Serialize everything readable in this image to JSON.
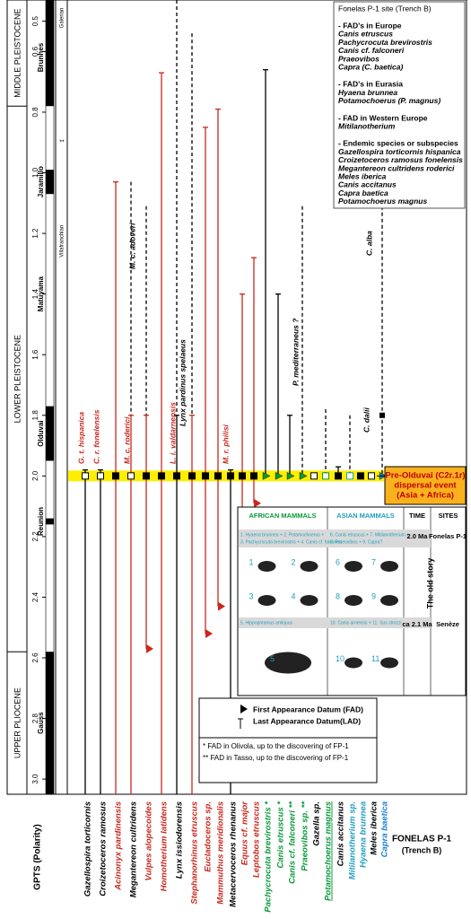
{
  "chart_data": {
    "type": "range",
    "ylim": [
      0.43,
      3.05
    ],
    "yticks": [
      0.5,
      0.6,
      0.8,
      {
        "value": 1.0,
        "label": "1.0"
      },
      1.2,
      1.4,
      1.6,
      1.8,
      {
        "value": 2.0,
        "label": "2.0"
      },
      2.2,
      2.4,
      2.6,
      2.8,
      {
        "value": 3.0,
        "label": "3.0"
      }
    ],
    "epochs": [
      {
        "name": "MIDDLE PLEISTOCENE",
        "from": 0.43,
        "to": 0.78
      },
      {
        "name": "LOWER PLEISTOCENE",
        "from": 0.78,
        "to": 2.58
      },
      {
        "name": "UPPER PLIOCENE",
        "from": 2.58,
        "to": 3.05
      }
    ],
    "chrons": [
      {
        "name": "Brunhes",
        "from": 0.43,
        "to": 0.78
      },
      {
        "name": "Jaramillo",
        "from": 0.99,
        "to": 1.07
      },
      {
        "name": "Matuyama",
        "from": 1.2,
        "to": 1.6,
        "reversed": true
      },
      {
        "name": "Olduvai",
        "from": 1.77,
        "to": 1.95
      },
      {
        "name": "Reunion",
        "from": 2.14,
        "to": 2.16
      },
      {
        "name": "Gauss",
        "from": 2.58,
        "to": 3.05
      }
    ],
    "stages": [
      {
        "name": "Galerian",
        "from": 0.43,
        "to": 0.9
      },
      {
        "name": "Villafranchian",
        "from": 0.9,
        "to": 1.6
      }
    ],
    "stage_boundary_mark": "**",
    "polarity_label": "GPTS (Polarity)",
    "band_age": 2.0,
    "taxa": [
      {
        "name": "Gazellospira torticornis",
        "color": "#000000",
        "marker": "white",
        "ranges": [
          {
            "top": 1.98,
            "bottom": null,
            "color": "#000000",
            "dashed": false
          }
        ]
      },
      {
        "name": "Croizetoceros ramosus",
        "color": "#000000",
        "marker": "white",
        "ranges": [
          {
            "top": 1.98,
            "bottom": null,
            "color": "#000000",
            "dashed": false
          }
        ]
      },
      {
        "name": "Acinonyx pardinensis",
        "color": "#c8281e",
        "marker": "black",
        "ranges": [
          {
            "top": 1.03,
            "bottom": null,
            "color": "#c8281e",
            "dashed": false
          }
        ]
      },
      {
        "name": "Megantereon cultridens",
        "color": "#000000",
        "marker": "white",
        "ranges": [
          {
            "top": 1.03,
            "bottom": 1.8,
            "color": "#000000",
            "dashed": true
          },
          {
            "top": 1.8,
            "bottom": null,
            "color": "#c8281e",
            "dashed": false
          }
        ]
      },
      {
        "name": "Vulpes alopecoides",
        "color": "#c8281e",
        "marker": "black",
        "ranges": [
          {
            "top": 1.11,
            "bottom": 1.8,
            "color": "#000000",
            "dashed": true
          },
          {
            "top": 1.8,
            "bottom": 2.57,
            "color": "#c8281e",
            "dashed": false,
            "fad_arrow": true
          }
        ]
      },
      {
        "name": "Homotherium latidens",
        "color": "#c8281e",
        "marker": "black",
        "ranges": [
          {
            "top": 0.67,
            "bottom": null,
            "color": "#c8281e",
            "dashed": false
          }
        ]
      },
      {
        "name": "Lynx issiodorensis",
        "color": "#000000",
        "marker": "black",
        "ranges": [
          {
            "top": 0.43,
            "bottom": 1.8,
            "color": "#000000",
            "dashed": true
          },
          {
            "top": 1.8,
            "bottom": null,
            "color": "#000000",
            "dashed": false
          }
        ]
      },
      {
        "name": "Stephanorhinus etruscus",
        "color": "#c8281e",
        "marker": "black",
        "ranges": [
          {
            "top": 0.54,
            "bottom": 1.8,
            "color": "#000000",
            "dashed": true
          },
          {
            "top": 1.8,
            "bottom": null,
            "color": "#c8281e",
            "dashed": false
          }
        ]
      },
      {
        "name": "Eucladoceros sp.",
        "color": "#c8281e",
        "marker": "black",
        "ranges": [
          {
            "top": 0.85,
            "bottom": 2.52,
            "color": "#c8281e",
            "dashed": false,
            "fad_arrow": true
          }
        ]
      },
      {
        "name": "Mammuthus meridionalis",
        "color": "#c8281e",
        "marker": "black",
        "ranges": [
          {
            "top": 0.79,
            "bottom": 2.43,
            "color": "#c8281e",
            "dashed": false,
            "fad_arrow": true
          }
        ]
      },
      {
        "name": "Metacervoceros rhenanus",
        "color": "#000000",
        "marker": "black",
        "ranges": [
          {
            "top": 1.98,
            "bottom": null,
            "color": "#000000",
            "dashed": false
          }
        ]
      },
      {
        "name": "Equus cf. major",
        "color": "#c8281e",
        "marker": "black",
        "ranges": [
          {
            "top": 1.4,
            "bottom": 2.43,
            "color": "#c8281e",
            "dashed": false,
            "fad_arrow": true
          }
        ]
      },
      {
        "name": "Leptobos etruscus",
        "color": "#c8281e",
        "marker": "black",
        "ranges": [
          {
            "top": 1.28,
            "bottom": 2.09,
            "color": "#c8281e",
            "dashed": false,
            "fad_arrow": true
          }
        ]
      },
      {
        "name": "Pachycrocuta brevirostris *",
        "color": "#0a9a3a",
        "marker": "triangle",
        "ranges": [
          {
            "top": 0.66,
            "bottom": 2.0,
            "color": "#000000",
            "dashed": false
          }
        ]
      },
      {
        "name": "Canis etruscus *",
        "color": "#0a9a3a",
        "marker": "triangle",
        "ranges": [
          {
            "top": 1.4,
            "bottom": 2.0,
            "color": "#000000",
            "dashed": false
          }
        ]
      },
      {
        "name": "Canis cf. falconeri **",
        "color": "#0a9a3a",
        "marker": "triangle",
        "ranges": [
          {
            "top": 1.8,
            "bottom": 2.0,
            "color": "#000000",
            "dashed": false
          }
        ]
      },
      {
        "name": "Praeovibos sp. **",
        "color": "#0a9a3a",
        "marker": "triangle",
        "ranges": [
          {
            "top": 1.11,
            "bottom": 2.0,
            "color": "#000000",
            "dashed": true
          }
        ]
      },
      {
        "name": "Gazella sp.",
        "color": "#000000",
        "marker": "white",
        "ranges": []
      },
      {
        "name": "Potamochoerus magnus",
        "color": "#0a9a3a",
        "marker": "white",
        "ranges": [
          {
            "top": 1.78,
            "bottom": 2.0,
            "color": "#000000",
            "dashed": true
          }
        ]
      },
      {
        "name": "Canis accitanus",
        "color": "#000000",
        "marker": "black",
        "ranges": [
          {
            "top": 1.97,
            "bottom": 2.0,
            "color": "#000000",
            "dashed": false
          }
        ]
      },
      {
        "name": "Mitilanotherium sp.",
        "color": "#1f9fc0",
        "marker": "white",
        "ranges": [
          {
            "top": 1.8,
            "bottom": 2.0,
            "color": "#000000",
            "dashed": true
          }
        ]
      },
      {
        "name": "Hyaena brunnea",
        "color": "#1f9fc0",
        "marker": "black",
        "ranges": []
      },
      {
        "name": "Meles iberica",
        "color": "#000000",
        "marker": "white",
        "ranges": []
      },
      {
        "name": "Capra baetica",
        "color": "#1a7fd1",
        "marker": "triangle",
        "ranges": [
          {
            "top": 1.11,
            "bottom": 2.0,
            "color": "#000000",
            "dashed": true
          }
        ]
      }
    ],
    "annotations": [
      {
        "text": "G. t. hispanica",
        "color": "#c8281e"
      },
      {
        "text": "C. r. fonelensis",
        "color": "#c8281e"
      },
      {
        "text": "M. c. roderici",
        "color": "#c8281e"
      },
      {
        "text": "M. c. adoveri",
        "color": "#000000"
      },
      {
        "text": "L. i. valdarnensis",
        "color": "#c8281e"
      },
      {
        "text": "Lynx pardinus spelaeus",
        "color": "#000000"
      },
      {
        "text": "M. r. philisi",
        "color": "#c8281e"
      },
      {
        "text": "P. mediterraneus ?",
        "color": "#000000"
      },
      {
        "text": "C. dalii",
        "color": "#000000"
      },
      {
        "text": "C. alba",
        "color": "#000000"
      }
    ],
    "event_box": [
      "Pre-Olduvai (C2r.1r)",
      "dispersal event",
      "(Asia + Africa)"
    ],
    "site_box": {
      "title": "Fonelas P-1 site (Trench B)",
      "groups": [
        {
          "heading": "- FAD's in Europe",
          "items": [
            "Canis etruscus",
            "Pachycrocuta brevirostris",
            "Canis cf. falconeri",
            "Praeovibos",
            "Capra (C. baetica)"
          ]
        },
        {
          "heading": "- FAD's in Eurasia",
          "items": [
            "Hyaena brunnea",
            "Potamochoerus (P. magnus)"
          ]
        },
        {
          "heading": "- FAD in Western Europe",
          "items": [
            "Mitilanotherium"
          ]
        },
        {
          "heading": "- Endemic species or subspecies",
          "items": [
            "Gazellospira torticornis hispanica",
            "Croizetoceros ramosus fonelensis",
            "Megantereon cultridens roderici",
            "Meles iberica",
            "Canis accitanus",
            "Capra baetica",
            "Potamochoerus magnus"
          ]
        }
      ]
    },
    "inset": {
      "headers": [
        "AFRICAN MAMMALS",
        "ASIAN MAMMALS",
        "TIME",
        "SITES"
      ],
      "rows": [
        {
          "african": [
            "1. Hyaena brunnea + 2. Potamochoerus +",
            "3. Pachycrocuta brevirostris + 4. Canis cf. falconeri"
          ],
          "asian": [
            "6. Canis etruscus + 7. Mitilanotherium +",
            "8. Praeovibos + 9. Capra?"
          ],
          "time": "2.0 Ma",
          "site": "Fonelas P-1",
          "african_numbers": [
            "1",
            "2",
            "3",
            "4"
          ],
          "asian_numbers": [
            "6",
            "7",
            "8",
            "9"
          ]
        },
        {
          "african": [
            "5. Hippopotamus antiquus"
          ],
          "asian": [
            "10. Canis arnensis + 11. Sus strozzi"
          ],
          "time": "ca 2.1 Ma",
          "site": "Senèze",
          "african_numbers": [
            "5"
          ],
          "asian_numbers": [
            "10",
            "11"
          ]
        }
      ],
      "side_label": "The old story"
    },
    "legend": {
      "fad": "First Appearance Datum (FAD)",
      "lad": "Last Appearance Datum(LAD)",
      "notes": [
        "* FAD in Olivola, up to the discovering of FP-1",
        "** FAD in Tasso, up to the discovering of FP-1"
      ]
    },
    "footer": [
      "FONELAS P-1",
      "(Trench B)"
    ]
  }
}
